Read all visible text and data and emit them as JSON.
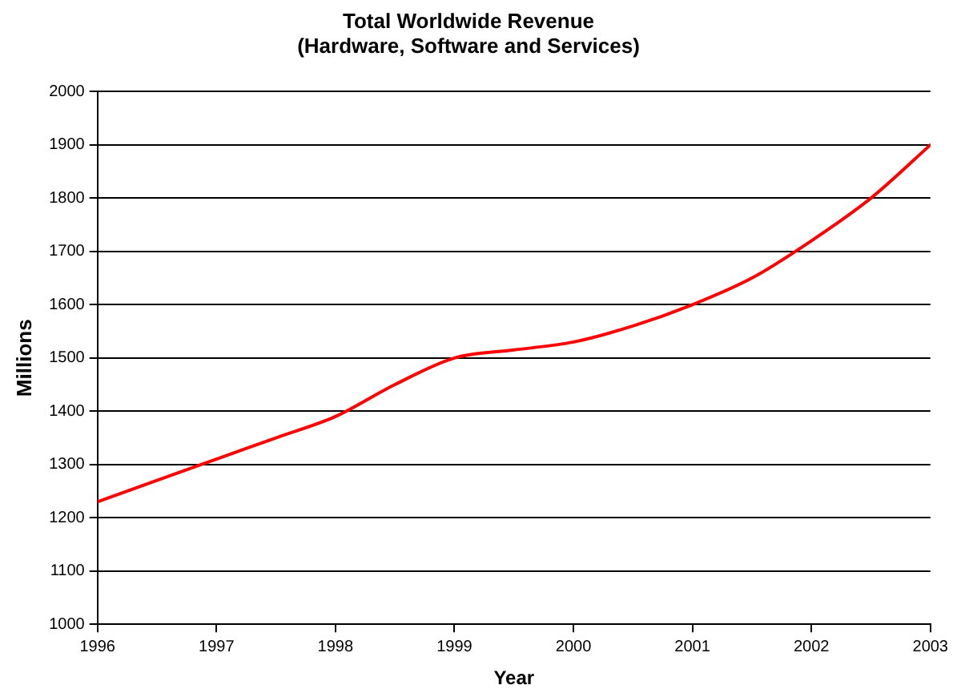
{
  "chart_data": {
    "type": "line",
    "title": "Total Worldwide Revenue\n(Hardware, Software and Services)",
    "xlabel": "Year",
    "ylabel": "Millions",
    "x": [
      1996,
      1996.5,
      1997,
      1997.5,
      1998,
      1998.5,
      1999,
      1999.5,
      2000,
      2000.5,
      2001,
      2001.5,
      2002,
      2002.5,
      2003
    ],
    "series": [
      {
        "color": "#ff0000",
        "values": [
          1230,
          1270,
          1310,
          1350,
          1390,
          1450,
          1500,
          1515,
          1530,
          1560,
          1600,
          1650,
          1720,
          1800,
          1900
        ]
      }
    ],
    "xlim": [
      1996,
      2003
    ],
    "xticks": [
      1996,
      1997,
      1998,
      1999,
      2000,
      2001,
      2002,
      2003
    ],
    "ylim": [
      1000,
      2000
    ],
    "yticks": [
      1000,
      1100,
      1200,
      1300,
      1400,
      1500,
      1600,
      1700,
      1800,
      1900,
      2000
    ],
    "grid": "y",
    "legend": false,
    "marker": "none",
    "line_style": "solid"
  }
}
